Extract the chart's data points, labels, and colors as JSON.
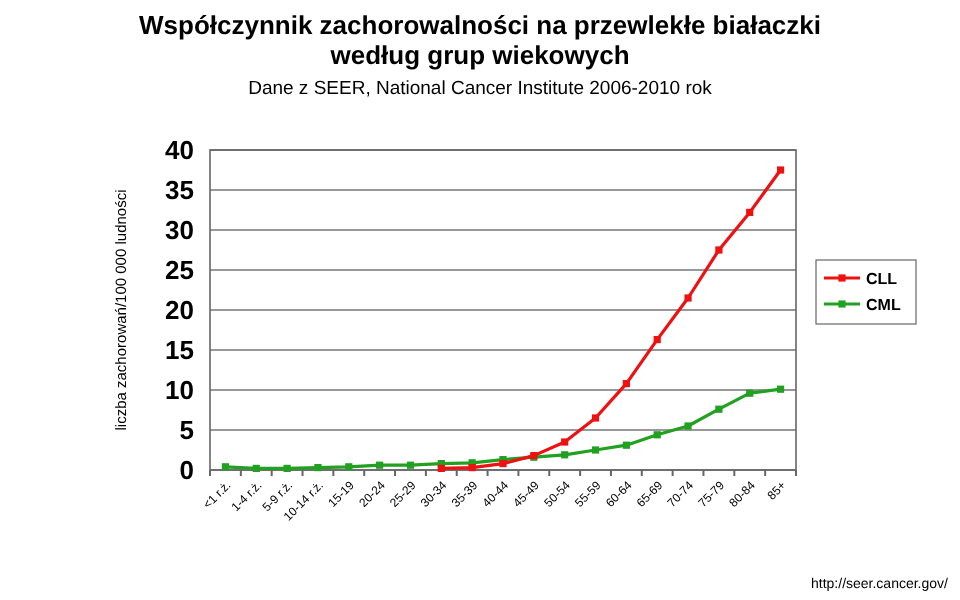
{
  "chart_data": {
    "type": "line",
    "title": "Współczynnik zachorowalności na przewlekłe białaczki\nwedług grup wiekowych",
    "subtitle": "Dane z SEER,  National Cancer Institute 2006-2010 rok",
    "ylabel": "liczba zachorowań/100 000 ludności",
    "annotations": [
      "http://seer.cancer.gov/"
    ],
    "categories": [
      "<1 r.ż.",
      "1-4 r.ż.",
      "5-9 r.ż.",
      "10-14 r.ż.",
      "15-19",
      "20-24",
      "25-29",
      "30-34",
      "35-39",
      "40-44",
      "45-49",
      "50-54",
      "55-59",
      "60-64",
      "65-69",
      "70-74",
      "75-79",
      "80-84",
      "85+"
    ],
    "series": [
      {
        "name": "CLL",
        "color": "#ee1111",
        "values": [
          null,
          null,
          null,
          null,
          null,
          null,
          null,
          0.2,
          0.3,
          0.8,
          1.8,
          3.5,
          6.5,
          10.8,
          16.3,
          21.5,
          27.5,
          32.2,
          37.5
        ]
      },
      {
        "name": "CML",
        "color": "#22a022",
        "values": [
          0.4,
          0.2,
          0.2,
          0.3,
          0.4,
          0.6,
          0.6,
          0.8,
          0.9,
          1.3,
          1.6,
          1.9,
          2.5,
          3.1,
          4.4,
          5.5,
          7.6,
          9.6,
          10.1
        ]
      }
    ],
    "ylim": [
      0,
      40
    ],
    "yticks": [
      0,
      5,
      10,
      15,
      20,
      25,
      30,
      35,
      40
    ],
    "grid": "y",
    "legend": "right",
    "marker": "square",
    "line_style": "solid"
  }
}
